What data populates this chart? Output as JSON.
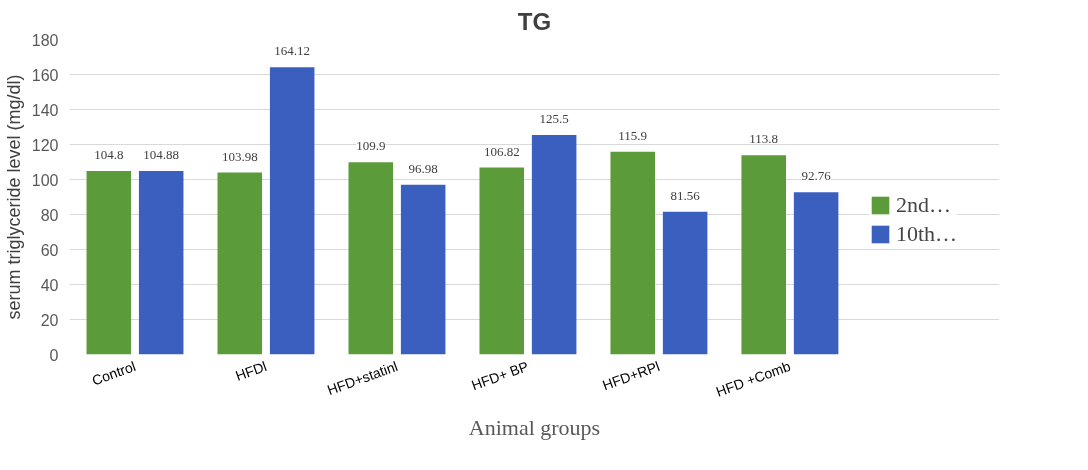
{
  "chart_data": {
    "type": "bar",
    "title": "TG",
    "xlabel": "Animal groups",
    "ylabel": "serum triglyceride level (mg/dl)",
    "categories": [
      "Control",
      "HFDl",
      "HFD+statinl",
      "HFD+ BP",
      "HFD+RPl",
      "HFD +Comb"
    ],
    "series": [
      {
        "name": "2nd…",
        "color": "#5b9b3a",
        "values": [
          104.8,
          103.98,
          109.9,
          106.82,
          115.9,
          113.8
        ]
      },
      {
        "name": "10th…",
        "color": "#3a5fbf",
        "values": [
          104.88,
          164.12,
          96.98,
          125.5,
          81.56,
          92.76
        ]
      }
    ],
    "ylim": [
      0,
      180
    ],
    "yticks": [
      0,
      20,
      40,
      60,
      80,
      100,
      120,
      140,
      160,
      180
    ],
    "grid": "y",
    "legend": "right",
    "data_labels": true
  }
}
